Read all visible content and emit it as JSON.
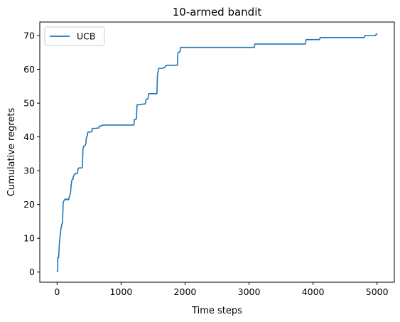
{
  "chart_data": {
    "type": "line",
    "title": "10-armed bandit",
    "xlabel": "Time steps",
    "ylabel": "Cumulative regrets",
    "xlim": [
      -270,
      5270
    ],
    "ylim": [
      -3,
      74
    ],
    "xticks": [
      0,
      1000,
      2000,
      3000,
      4000,
      5000
    ],
    "yticks": [
      0,
      10,
      20,
      30,
      40,
      50,
      60,
      70
    ],
    "grid": false,
    "legend_position": "top-left",
    "series": [
      {
        "name": "UCB",
        "color": "#1f77b4",
        "x": [
          0,
          10,
          12,
          25,
          30,
          35,
          38,
          45,
          50,
          55,
          60,
          65,
          70,
          72,
          80,
          85,
          90,
          92,
          95,
          100,
          105,
          110,
          115,
          118,
          120,
          125,
          130,
          135,
          140,
          145,
          150,
          155,
          160,
          170,
          180,
          195,
          200,
          210,
          220,
          230,
          235,
          240,
          245,
          250,
          252,
          262,
          265,
          275,
          285,
          290,
          305,
          320,
          330,
          340,
          360,
          370,
          380,
          395,
          405,
          415,
          430,
          440,
          450,
          460,
          475,
          480,
          500,
          510,
          520,
          530,
          545,
          550,
          580,
          590,
          620,
          630,
          650,
          660,
          680,
          690,
          700,
          710,
          1200,
          1210,
          1230,
          1240,
          1250,
          1262,
          1380,
          1392,
          1420,
          1432,
          1560,
          1568,
          1575,
          1588,
          1650,
          1660,
          1680,
          1690,
          1700,
          1710,
          1720,
          1730,
          1880,
          1888,
          1900,
          1910,
          1920,
          1930,
          1950,
          1960,
          3080,
          3092,
          3880,
          3892,
          4100,
          4112,
          4800,
          4812,
          4980,
          4985,
          5000
        ],
        "y": [
          0.2,
          0.2,
          4.3,
          4.3,
          6.3,
          8.0,
          9.0,
          10.2,
          11.0,
          12.0,
          12.8,
          13.2,
          13.5,
          14.0,
          14.4,
          14.5,
          17.5,
          18.0,
          20.5,
          20.9,
          21.0,
          21.1,
          21.2,
          21.4,
          21.5,
          21.6,
          21.6,
          21.6,
          21.5,
          21.5,
          21.4,
          21.5,
          21.6,
          21.5,
          21.4,
          22.5,
          22.8,
          23.4,
          25.8,
          27.0,
          27.4,
          27.5,
          27.5,
          27.5,
          28.2,
          28.5,
          28.7,
          29.0,
          29.0,
          29.2,
          29.2,
          29.2,
          30.7,
          30.8,
          30.8,
          30.8,
          30.8,
          31.0,
          36.5,
          37.2,
          37.4,
          37.5,
          38.0,
          40.0,
          40.4,
          41.4,
          41.4,
          41.4,
          41.5,
          41.5,
          41.5,
          42.5,
          42.5,
          42.5,
          42.6,
          42.6,
          42.6,
          43.2,
          43.2,
          43.3,
          43.3,
          43.5,
          43.5,
          45.2,
          45.2,
          45.4,
          49.5,
          49.5,
          49.8,
          51.2,
          51.2,
          52.8,
          52.8,
          58.0,
          59.0,
          60.3,
          60.3,
          60.5,
          60.5,
          60.8,
          61.0,
          61.2,
          61.2,
          61.2,
          61.2,
          64.8,
          65.0,
          65.2,
          65.2,
          66.5,
          66.5,
          66.5,
          66.5,
          67.5,
          67.5,
          68.8,
          68.8,
          69.4,
          69.4,
          70.0,
          70.0,
          70.4,
          70.5
        ]
      }
    ]
  }
}
